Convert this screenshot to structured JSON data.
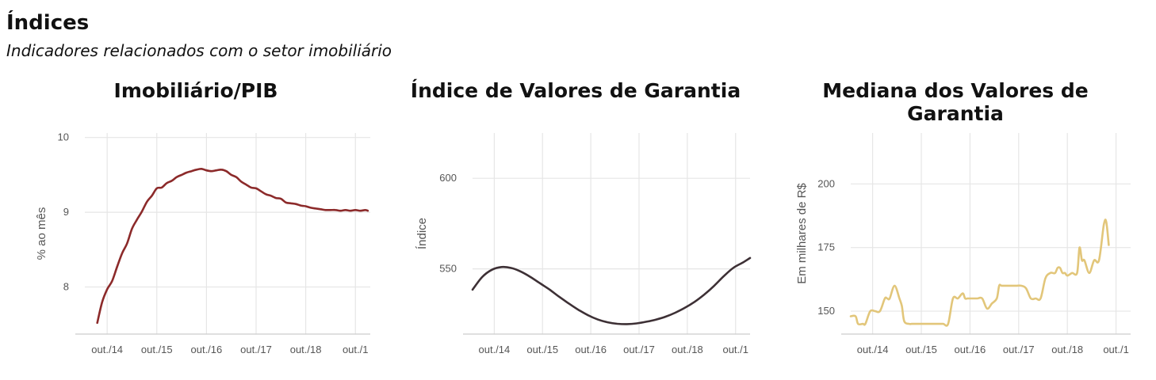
{
  "header": {
    "title": "Índices",
    "subtitle": "Indicadores relacionados com o setor imobiliário"
  },
  "chart_data": [
    {
      "type": "line",
      "title": "Imobiliário/PIB",
      "xlabel": "",
      "ylabel": "% ao mês",
      "xticks": [
        "out./14",
        "out./15",
        "out./16",
        "out./17",
        "out./18",
        "out./1"
      ],
      "yticks": [
        8,
        9,
        10
      ],
      "xlim": [
        2014.3,
        2020.05
      ],
      "ylim": [
        7.37,
        10.06
      ],
      "grid": true,
      "color": "#8c2a2a",
      "series": [
        {
          "x": [
            2014.55,
            2014.65,
            2014.75,
            2014.85,
            2014.95,
            2015.05,
            2015.15,
            2015.25,
            2015.35,
            2015.45,
            2015.55,
            2015.65,
            2015.75,
            2015.85,
            2015.95,
            2016.05,
            2016.15,
            2016.25,
            2016.35,
            2016.45,
            2016.55,
            2016.65,
            2016.75,
            2016.85,
            2016.95,
            2017.05,
            2017.15,
            2017.25,
            2017.35,
            2017.45,
            2017.55,
            2017.65,
            2017.75,
            2017.85,
            2017.95,
            2018.05,
            2018.15,
            2018.25,
            2018.35,
            2018.45,
            2018.55,
            2018.65,
            2018.75,
            2018.85,
            2018.95,
            2019.05,
            2019.15,
            2019.25,
            2019.35,
            2019.45,
            2019.55,
            2019.65,
            2019.75,
            2019.85,
            2019.95,
            2020.0
          ],
          "y": [
            7.52,
            7.8,
            7.97,
            8.08,
            8.27,
            8.45,
            8.58,
            8.78,
            8.9,
            9.01,
            9.14,
            9.22,
            9.32,
            9.33,
            9.39,
            9.42,
            9.47,
            9.5,
            9.53,
            9.55,
            9.57,
            9.58,
            9.56,
            9.55,
            9.56,
            9.57,
            9.55,
            9.5,
            9.47,
            9.41,
            9.37,
            9.33,
            9.32,
            9.28,
            9.24,
            9.22,
            9.19,
            9.18,
            9.13,
            9.12,
            9.11,
            9.09,
            9.08,
            9.06,
            9.05,
            9.04,
            9.03,
            9.03,
            9.03,
            9.02,
            9.03,
            9.02,
            9.03,
            9.02,
            9.03,
            9.02
          ]
        }
      ]
    },
    {
      "type": "line",
      "title": "Índice de Valores de Garantia",
      "xlabel": "",
      "ylabel": "Índice",
      "xticks": [
        "out./14",
        "out./15",
        "out./16",
        "out./17",
        "out./18",
        "out./1"
      ],
      "yticks": [
        550,
        600
      ],
      "xlim": [
        2014.3,
        2020.05
      ],
      "ylim": [
        514,
        625
      ],
      "grid": true,
      "color": "#3d3035",
      "series": [
        {
          "x": [
            2014.3,
            2014.5,
            2014.7,
            2014.9,
            2015.1,
            2015.3,
            2015.5,
            2015.7,
            2015.9,
            2016.1,
            2016.3,
            2016.5,
            2016.7,
            2016.9,
            2017.1,
            2017.3,
            2017.5,
            2017.7,
            2017.9,
            2018.1,
            2018.3,
            2018.5,
            2018.7,
            2018.9,
            2019.1,
            2019.3,
            2019.5,
            2019.7,
            2019.9,
            2020.05
          ],
          "y": [
            538.5,
            545.5,
            549.5,
            551.0,
            550.5,
            548.5,
            545.5,
            542.0,
            538.5,
            534.5,
            530.8,
            527.3,
            524.3,
            522.0,
            520.5,
            519.7,
            519.5,
            519.9,
            520.8,
            522.0,
            523.6,
            525.8,
            528.5,
            531.8,
            535.8,
            540.5,
            545.8,
            550.5,
            553.5,
            556.0
          ]
        }
      ]
    },
    {
      "type": "line",
      "title": "Mediana dos Valores de Garantia",
      "xlabel": "",
      "ylabel": "Em milhares de R$",
      "xticks": [
        "out./14",
        "out./15",
        "out./16",
        "out./17",
        "out./18",
        "out./1"
      ],
      "yticks": [
        150,
        175,
        200
      ],
      "xlim": [
        2014.3,
        2020.05
      ],
      "ylim": [
        141,
        220
      ],
      "grid": true,
      "color": "#e2c67a",
      "series": [
        {
          "x": [
            2014.3,
            2014.4,
            2014.45,
            2014.55,
            2014.6,
            2014.7,
            2014.8,
            2014.9,
            2015.0,
            2015.05,
            2015.1,
            2015.2,
            2015.3,
            2015.35,
            2015.4,
            2015.5,
            2015.55,
            2015.6,
            2015.7,
            2015.9,
            2016.1,
            2016.2,
            2016.3,
            2016.4,
            2016.5,
            2016.6,
            2016.65,
            2016.7,
            2016.8,
            2016.9,
            2017.0,
            2017.1,
            2017.2,
            2017.3,
            2017.35,
            2017.4,
            2017.5,
            2017.6,
            2017.7,
            2017.8,
            2017.9,
            2018.0,
            2018.1,
            2018.2,
            2018.3,
            2018.4,
            2018.45,
            2018.5,
            2018.55,
            2018.6,
            2018.65,
            2018.7,
            2018.75,
            2018.85,
            2018.95,
            2019.0,
            2019.05,
            2019.1,
            2019.2,
            2019.3,
            2019.4,
            2019.5,
            2019.55,
            2019.6
          ],
          "y": [
            148,
            148,
            145,
            145,
            145,
            150,
            150,
            150,
            155,
            155,
            155,
            160,
            155,
            152,
            146,
            145,
            145,
            145,
            145,
            145,
            145,
            145,
            145,
            155,
            155,
            157,
            155,
            155,
            155,
            155,
            155,
            151,
            153,
            155,
            160,
            160,
            160,
            160,
            160,
            160,
            159,
            155,
            155,
            155,
            163,
            165,
            165,
            165,
            167,
            167,
            165,
            165,
            164,
            165,
            165,
            175,
            170,
            170,
            165,
            170,
            170,
            184,
            185,
            176
          ]
        }
      ]
    }
  ]
}
